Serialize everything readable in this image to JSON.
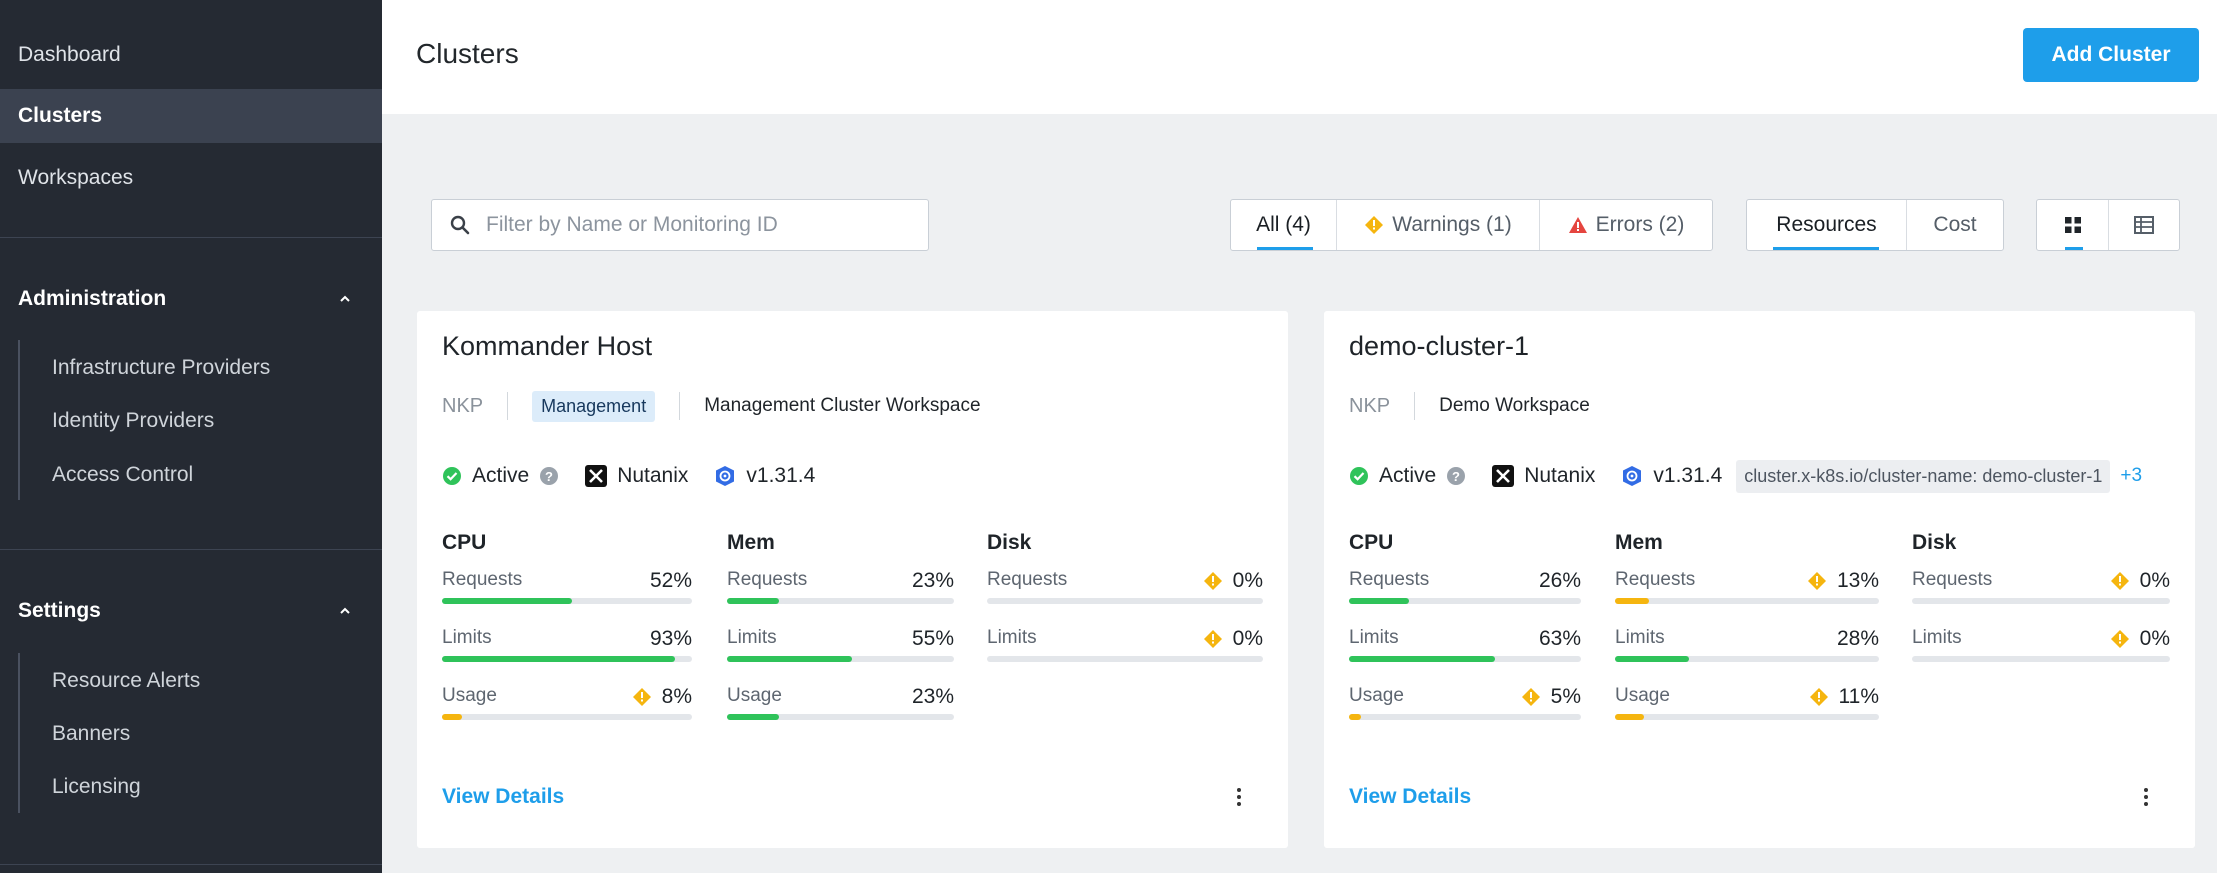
{
  "sidebar": {
    "nav": [
      "Dashboard",
      "Clusters",
      "Workspaces"
    ],
    "administration": {
      "title": "Administration",
      "items": [
        "Infrastructure Providers",
        "Identity Providers",
        "Access Control"
      ]
    },
    "settings": {
      "title": "Settings",
      "items": [
        "Resource Alerts",
        "Banners",
        "Licensing"
      ]
    }
  },
  "header": {
    "title": "Clusters",
    "add_button": "Add Cluster"
  },
  "toolbar": {
    "search_placeholder": "Filter by Name or Monitoring ID",
    "filters": [
      "All (4)",
      "Warnings (1)",
      "Errors (2)"
    ],
    "view_tabs": [
      "Resources",
      "Cost"
    ]
  },
  "colors": {
    "accent": "#1e9eea",
    "success": "#2fc35a",
    "warning": "#f5b50f",
    "error": "#e5453f",
    "sidebar_bg": "#252a33"
  },
  "clusters": [
    {
      "name": "Kommander Host",
      "provider_tag": "NKP",
      "type_badge": "Management",
      "workspace": "Management Cluster Workspace",
      "status": "Active",
      "infra": "Nutanix",
      "version": "v1.31.4",
      "cpu": {
        "title": "CPU",
        "requests": {
          "label": "Requests",
          "value": "52%",
          "fraction": 0.52,
          "warn": false
        },
        "limits": {
          "label": "Limits",
          "value": "93%",
          "fraction": 0.93,
          "warn": false
        },
        "usage": {
          "label": "Usage",
          "value": "8%",
          "fraction": 0.08,
          "warn": true
        }
      },
      "mem": {
        "title": "Mem",
        "requests": {
          "label": "Requests",
          "value": "23%",
          "fraction": 0.23,
          "warn": false
        },
        "limits": {
          "label": "Limits",
          "value": "55%",
          "fraction": 0.55,
          "warn": false
        },
        "usage": {
          "label": "Usage",
          "value": "23%",
          "fraction": 0.23,
          "warn": false
        }
      },
      "disk": {
        "title": "Disk",
        "requests": {
          "label": "Requests",
          "value": "0%",
          "fraction": 0,
          "warn": true
        },
        "limits": {
          "label": "Limits",
          "value": "0%",
          "fraction": 0,
          "warn": true
        }
      },
      "view_details": "View Details"
    },
    {
      "name": "demo-cluster-1",
      "provider_tag": "NKP",
      "workspace": "Demo Workspace",
      "status": "Active",
      "infra": "Nutanix",
      "version": "v1.31.4",
      "label": "cluster.x-k8s.io/cluster-name: demo-cluster-1",
      "more_labels": "+3",
      "cpu": {
        "title": "CPU",
        "requests": {
          "label": "Requests",
          "value": "26%",
          "fraction": 0.26,
          "warn": false
        },
        "limits": {
          "label": "Limits",
          "value": "63%",
          "fraction": 0.63,
          "warn": false
        },
        "usage": {
          "label": "Usage",
          "value": "5%",
          "fraction": 0.05,
          "warn": true
        }
      },
      "mem": {
        "title": "Mem",
        "requests": {
          "label": "Requests",
          "value": "13%",
          "fraction": 0.13,
          "warn": true
        },
        "limits": {
          "label": "Limits",
          "value": "28%",
          "fraction": 0.28,
          "warn": false
        },
        "usage": {
          "label": "Usage",
          "value": "11%",
          "fraction": 0.11,
          "warn": true
        }
      },
      "disk": {
        "title": "Disk",
        "requests": {
          "label": "Requests",
          "value": "0%",
          "fraction": 0,
          "warn": true
        },
        "limits": {
          "label": "Limits",
          "value": "0%",
          "fraction": 0,
          "warn": true
        }
      },
      "view_details": "View Details"
    }
  ]
}
